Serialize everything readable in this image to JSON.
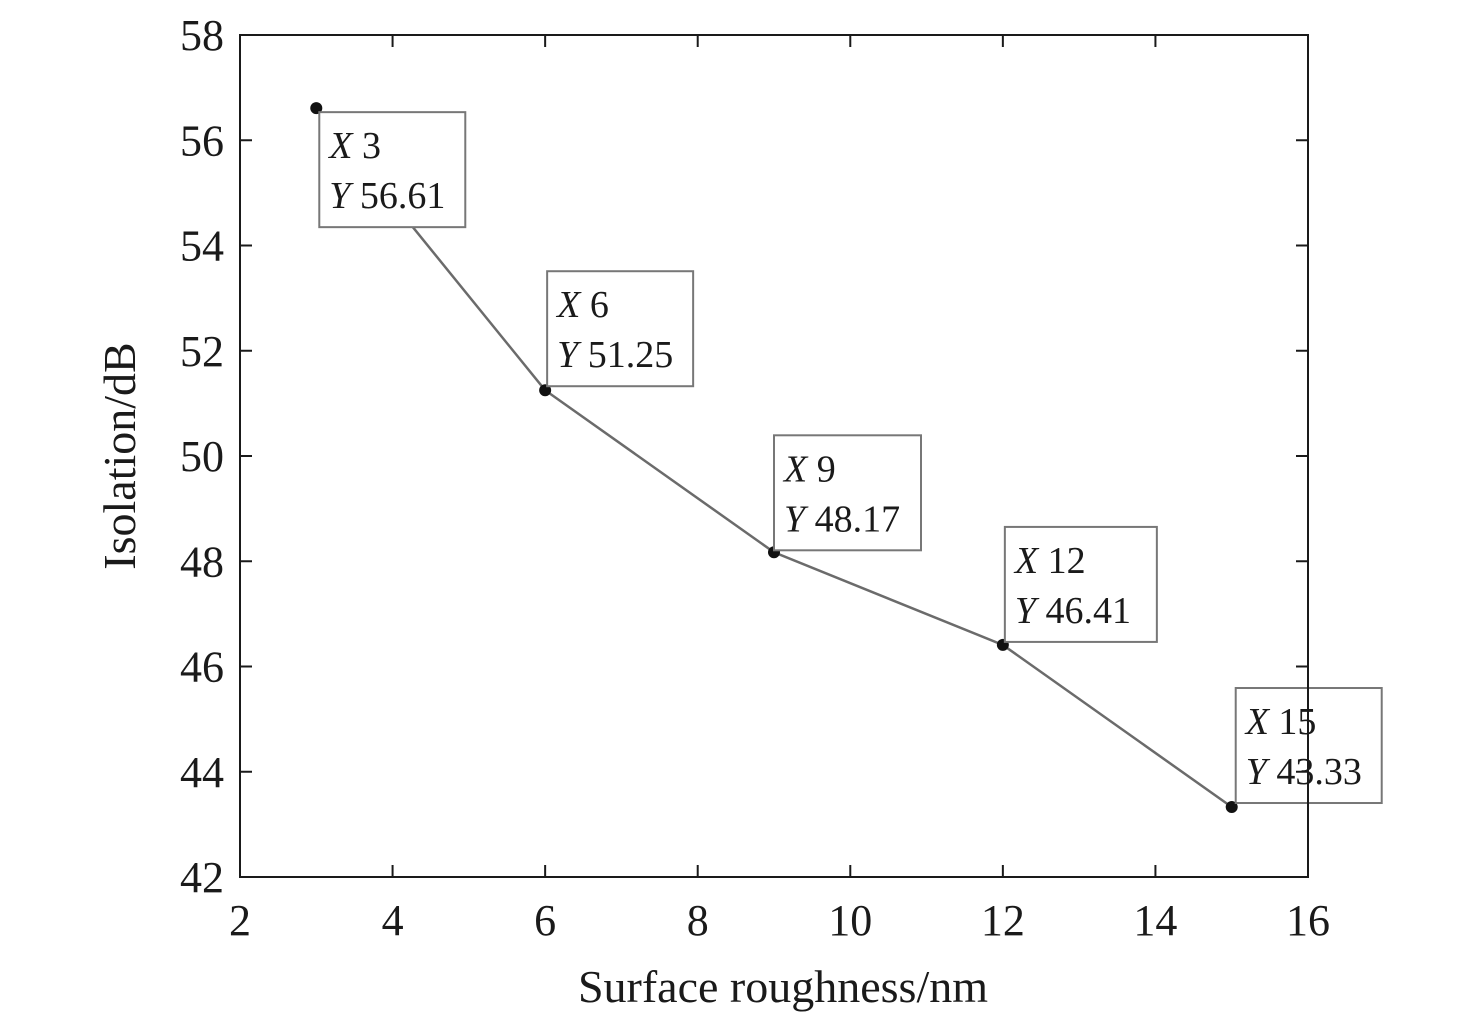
{
  "chart_data": {
    "type": "line",
    "xlabel": "Surface roughness/nm",
    "ylabel": "Isolation/dB",
    "xlim": [
      2,
      16
    ],
    "ylim": [
      42,
      58
    ],
    "xticks": [
      2,
      4,
      6,
      8,
      10,
      12,
      14,
      16
    ],
    "yticks": [
      42,
      44,
      46,
      48,
      50,
      52,
      54,
      56,
      58
    ],
    "grid": false,
    "series": [
      {
        "x": [
          3,
          6,
          9,
          12,
          15
        ],
        "y": [
          56.61,
          51.25,
          48.17,
          46.41,
          43.33
        ]
      }
    ],
    "annotations": [
      {
        "x_label": "X",
        "x_text": "3",
        "y_label": "Y",
        "y_text": "56.61"
      },
      {
        "x_label": "X",
        "x_text": "6",
        "y_label": "Y",
        "y_text": "51.25"
      },
      {
        "x_label": "X",
        "x_text": "9",
        "y_label": "Y",
        "y_text": "48.17"
      },
      {
        "x_label": "X",
        "x_text": "12",
        "y_label": "Y",
        "y_text": "46.41"
      },
      {
        "x_label": "X",
        "x_text": "15",
        "y_label": "Y",
        "y_text": "43.33"
      }
    ],
    "colors": {
      "line": "#6b6b6b",
      "marker": "#111111",
      "axis": "#1a1a1a",
      "annotation_border": "#777777"
    }
  }
}
